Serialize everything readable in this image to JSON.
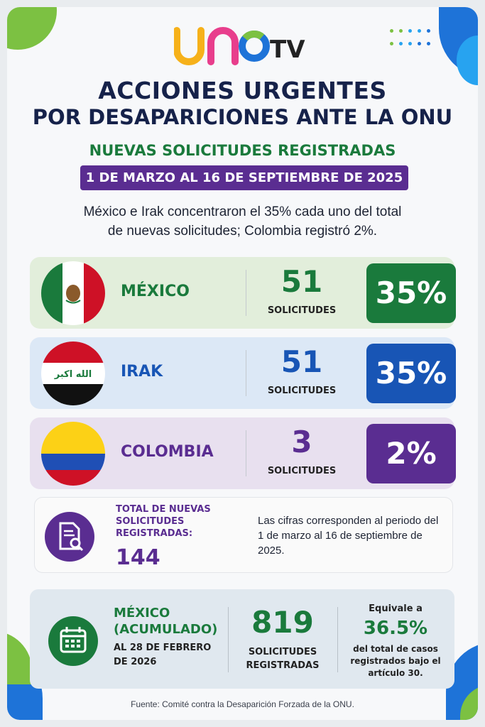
{
  "brand": {
    "logo_text": "UNO",
    "tv_text": "TV",
    "logo_colors": [
      "#f6b11a",
      "#e83e8c",
      "#1e73d8",
      "#7cc142"
    ]
  },
  "header": {
    "title_line1": "ACCIONES URGENTES",
    "title_line2": "POR DESAPARICIONES ANTE LA ONU",
    "subtitle": "NUEVAS SOLICITUDES REGISTRADAS",
    "date_range": "1 DE MARZO AL 16 DE SEPTIEMBRE DE 2025"
  },
  "intro": {
    "line1": "México e Irak concentraron el 35% cada uno del total",
    "line2": "de nuevas solicitudes; Colombia registró 2%."
  },
  "countries": [
    {
      "name": "MÉXICO",
      "count": "51",
      "count_label": "SOLICITUDES",
      "percent": "35%",
      "fraction": 0.35,
      "color": "#1a7a3c",
      "flag": "mexico-flag"
    },
    {
      "name": "IRAK",
      "count": "51",
      "count_label": "SOLICITUDES",
      "percent": "35%",
      "fraction": 0.35,
      "color": "#1855b5",
      "flag": "iraq-flag"
    },
    {
      "name": "COLOMBIA",
      "count": "3",
      "count_label": "SOLICITUDES",
      "percent": "2%",
      "fraction": 0.02,
      "color": "#5a2d91",
      "flag": "colombia-flag"
    }
  ],
  "iraq_flag_text": "الله اكبر",
  "total": {
    "label": "TOTAL DE NUEVAS SOLICITUDES REGISTRADAS:",
    "value": "144",
    "note": "Las cifras corresponden al periodo del 1 de marzo al 16 de septiembre de 2025.",
    "icon": "document-search-icon"
  },
  "accumulated": {
    "title": "MÉXICO (ACUMULADO)",
    "date": "AL 28 DE FEBRERO DE 2026",
    "value": "819",
    "value_label": "SOLICITUDES REGISTRADAS",
    "equiv_label": "Equivale a",
    "percent": "36.5%",
    "percent_desc": "del total de casos registrados bajo el artículo 30.",
    "icon": "calendar-icon"
  },
  "source": "Fuente: Comité contra la Desaparición Forzada de la ONU."
}
